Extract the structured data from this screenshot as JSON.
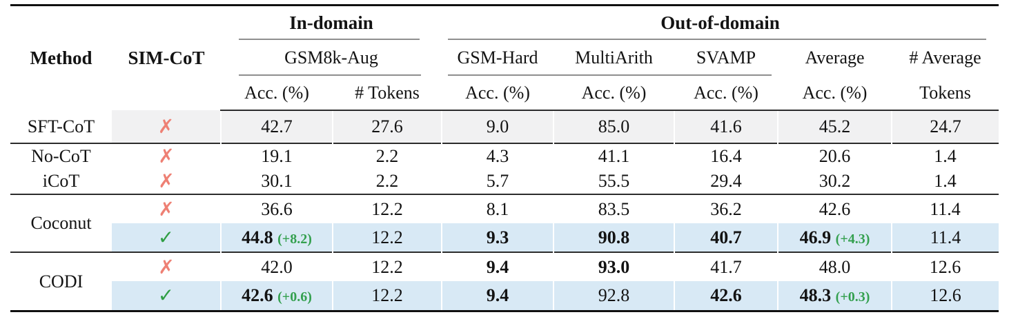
{
  "table": {
    "header": {
      "method": "Method",
      "sim_cot": "SIM-CoT",
      "in_domain": "In-domain",
      "out_of_domain": "Out-of-domain",
      "gsm8k_aug": "GSM8k-Aug",
      "gsm_hard": "GSM-Hard",
      "multiarith": "MultiArith",
      "svamp": "SVAMP",
      "average": "Average",
      "num_average": "# Average",
      "acc": "Acc. (%)",
      "num_tokens": "# Tokens",
      "tokens": "Tokens"
    },
    "columns": [
      "gsm8k_acc",
      "gsm8k_tokens",
      "gsm_hard_acc",
      "multiarith_acc",
      "svamp_acc",
      "average_acc",
      "average_tokens"
    ],
    "sections": [
      {
        "rows": [
          {
            "method": "SFT-CoT",
            "sim_cot": "cross",
            "highlight": "gray",
            "cells": [
              {
                "v": "42.7"
              },
              {
                "v": "27.6"
              },
              {
                "v": "9.0"
              },
              {
                "v": "85.0"
              },
              {
                "v": "41.6"
              },
              {
                "v": "45.2"
              },
              {
                "v": "24.7"
              }
            ]
          }
        ]
      },
      {
        "rows": [
          {
            "method": "No-CoT",
            "sim_cot": "cross",
            "highlight": null,
            "cells": [
              {
                "v": "19.1"
              },
              {
                "v": "2.2"
              },
              {
                "v": "4.3"
              },
              {
                "v": "41.1"
              },
              {
                "v": "16.4"
              },
              {
                "v": "20.6"
              },
              {
                "v": "1.4"
              }
            ]
          },
          {
            "method": "iCoT",
            "sim_cot": "cross",
            "highlight": null,
            "cells": [
              {
                "v": "30.1"
              },
              {
                "v": "2.2"
              },
              {
                "v": "5.7"
              },
              {
                "v": "55.5"
              },
              {
                "v": "29.4"
              },
              {
                "v": "30.2"
              },
              {
                "v": "1.4"
              }
            ]
          }
        ]
      },
      {
        "method_group": "Coconut",
        "rows": [
          {
            "sim_cot": "cross",
            "highlight": null,
            "cells": [
              {
                "v": "36.6"
              },
              {
                "v": "12.2"
              },
              {
                "v": "8.1"
              },
              {
                "v": "83.5"
              },
              {
                "v": "36.2"
              },
              {
                "v": "42.6"
              },
              {
                "v": "11.4"
              }
            ]
          },
          {
            "sim_cot": "check",
            "highlight": "blue",
            "cells": [
              {
                "v": "44.8",
                "bold": true,
                "delta": "(+8.2)"
              },
              {
                "v": "12.2"
              },
              {
                "v": "9.3",
                "bold": true
              },
              {
                "v": "90.8",
                "bold": true
              },
              {
                "v": "40.7",
                "bold": true
              },
              {
                "v": "46.9",
                "bold": true,
                "delta": "(+4.3)"
              },
              {
                "v": "11.4"
              }
            ]
          }
        ]
      },
      {
        "method_group": "CODI",
        "rows": [
          {
            "sim_cot": "cross",
            "highlight": null,
            "cells": [
              {
                "v": "42.0"
              },
              {
                "v": "12.2"
              },
              {
                "v": "9.4",
                "bold": true
              },
              {
                "v": "93.0",
                "bold": true
              },
              {
                "v": "41.7"
              },
              {
                "v": "48.0"
              },
              {
                "v": "12.6"
              }
            ]
          },
          {
            "sim_cot": "check",
            "highlight": "blue",
            "cells": [
              {
                "v": "42.6",
                "bold": true,
                "delta": "(+0.6)"
              },
              {
                "v": "12.2"
              },
              {
                "v": "9.4",
                "bold": true
              },
              {
                "v": "92.8"
              },
              {
                "v": "42.6",
                "bold": true
              },
              {
                "v": "48.3",
                "bold": true,
                "delta": "(+0.3)"
              },
              {
                "v": "12.6"
              }
            ]
          }
        ]
      }
    ]
  },
  "icons": {
    "cross": "✗",
    "check": "✓"
  },
  "colors": {
    "cross_red": "#ee8074",
    "check_green": "#2f9e44",
    "delta_green": "#34a04f",
    "row_blue": "#d8e9f5",
    "row_gray": "#f1f1f2"
  }
}
